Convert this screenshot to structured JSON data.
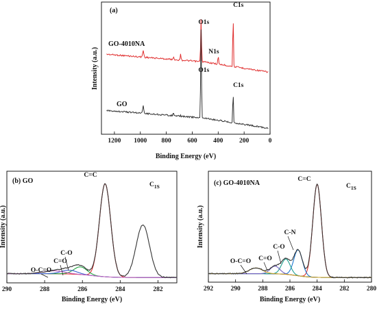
{
  "chart_data": [
    {
      "panel": "(a)",
      "type": "line",
      "xlabel": "Binding Energy (eV)",
      "ylabel": "Intensity (a.u.)",
      "xlim": [
        1300,
        0
      ],
      "xticks": [
        "1200",
        "1000",
        "800",
        "600",
        "400",
        "200",
        "0"
      ],
      "series": [
        {
          "name": "GO-4010NA",
          "color": "#e03030",
          "baseline": 0.35,
          "peaks": [
            {
              "label": "O1s",
              "x": 532
            },
            {
              "label": "N1s",
              "x": 400
            },
            {
              "label": "C1s",
              "x": 285
            }
          ]
        },
        {
          "name": "GO",
          "color": "#333333",
          "baseline": 0.0,
          "peaks": [
            {
              "label": "O1s",
              "x": 532
            },
            {
              "label": "C1s",
              "x": 285
            }
          ]
        }
      ]
    },
    {
      "panel": "(b) GO",
      "type": "line",
      "xlabel": "Binding Energy (eV)",
      "ylabel": "Intensity (a.u.)",
      "corner_label": "C",
      "corner_sub": "1S",
      "xlim": [
        290,
        281
      ],
      "xticks": [
        "290",
        "288",
        "286",
        "284",
        "282"
      ],
      "components": [
        {
          "label": "C=C",
          "center": 284.8,
          "height": 0.97,
          "width": 0.42,
          "color": "#e03030"
        },
        {
          "label": "C-O",
          "center": 286.1,
          "height": 0.08,
          "width": 0.5,
          "color": "#20a040"
        },
        {
          "label": "C=O",
          "center": 286.7,
          "height": 0.04,
          "width": 0.6,
          "color": "#3a5fd0"
        },
        {
          "label": "O-C=O",
          "center": 287.5,
          "height": 0.03,
          "width": 0.8,
          "color": "#c060c0"
        }
      ],
      "envelope_extra_peak": {
        "center": 282.8,
        "height": 0.55,
        "width": 0.5
      },
      "envelope_color": "#333333"
    },
    {
      "panel": "(c) GO-4010NA",
      "type": "line",
      "xlabel": "Binding Energy (eV)",
      "ylabel": "Intensity (a.u.)",
      "corner_label": "C",
      "corner_sub": "1S",
      "xlim": [
        292,
        280
      ],
      "xticks": [
        "292",
        "290",
        "288",
        "286",
        "284",
        "282",
        "280"
      ],
      "components": [
        {
          "label": "C=C",
          "center": 284.0,
          "height": 0.97,
          "width": 0.45,
          "color": "#e03030"
        },
        {
          "label": "C-N",
          "center": 285.4,
          "height": 0.27,
          "width": 0.45,
          "color": "#1e78d0"
        },
        {
          "label": "C-O",
          "center": 286.3,
          "height": 0.16,
          "width": 0.45,
          "color": "#20a090"
        },
        {
          "label": "C=O",
          "center": 287.1,
          "height": 0.08,
          "width": 0.5,
          "color": "#7060c0"
        },
        {
          "label": "O-C=O",
          "center": 288.5,
          "height": 0.06,
          "width": 0.7,
          "color": "#c8a020"
        }
      ],
      "envelope_color": "#333333"
    }
  ]
}
